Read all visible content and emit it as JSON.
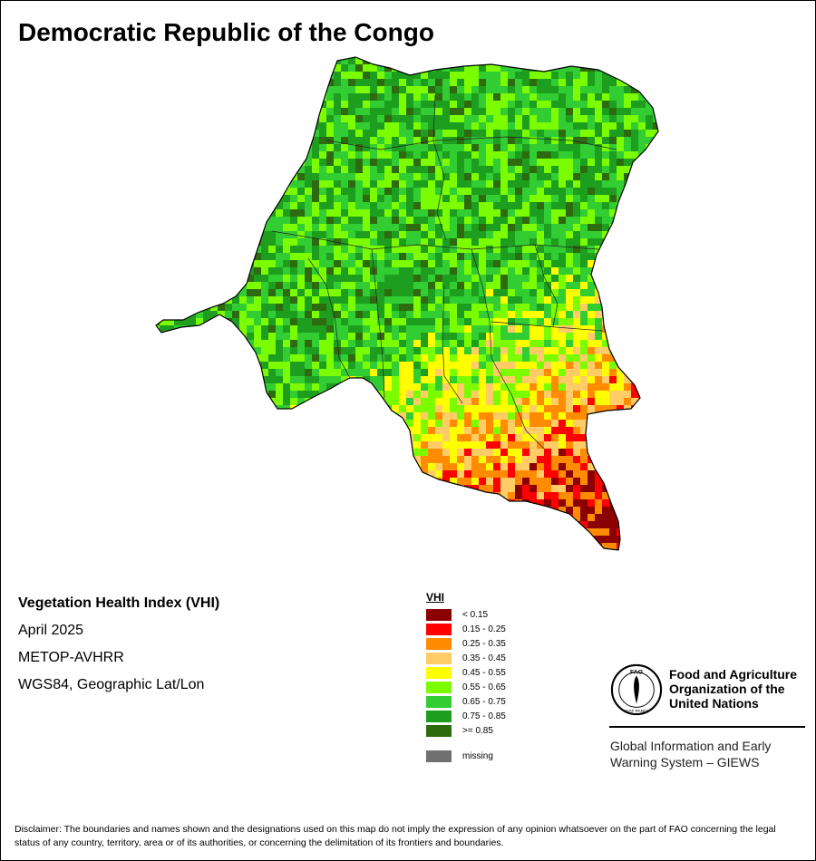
{
  "title": "Democratic Republic of the Congo",
  "info": {
    "index_name": "Vegetation Health Index (VHI)",
    "period": "April 2025",
    "sensor": "METOP-AVHRR",
    "projection": "WGS84, Geographic Lat/Lon"
  },
  "legend": {
    "title": "VHI",
    "classes": [
      {
        "label": "< 0.15",
        "color": "#8b0000"
      },
      {
        "label": "0.15 - 0.25",
        "color": "#ff0000"
      },
      {
        "label": "0.25 - 0.35",
        "color": "#ff8c00"
      },
      {
        "label": "0.35 - 0.45",
        "color": "#ffcc66"
      },
      {
        "label": "0.45 - 0.55",
        "color": "#ffff00"
      },
      {
        "label": "0.55 - 0.65",
        "color": "#7cfc00"
      },
      {
        "label": "0.65 - 0.75",
        "color": "#32cd32"
      },
      {
        "label": "0.75 - 0.85",
        "color": "#1e9e1e"
      },
      {
        "label": ">= 0.85",
        "color": "#2e6b0e"
      }
    ],
    "missing": {
      "label": "missing",
      "color": "#707070"
    }
  },
  "logo": {
    "org_line1": "Food and Agriculture",
    "org_line2": "Organization of the",
    "org_line3": "United Nations",
    "giews_line1": "Global Information and Early",
    "giews_line2": "Warning System – GIEWS",
    "emblem_letters": "FAO",
    "emblem_motto": "FIAT PANIS"
  },
  "disclaimer": "Disclaimer: The boundaries and names shown and the designations used on this map do not imply the expression of any opinion whatsoever on the part of FAO concerning the legal status of any country, territory, area or of its authorities, or concerning the delimitation of its frontiers and boundaries."
}
